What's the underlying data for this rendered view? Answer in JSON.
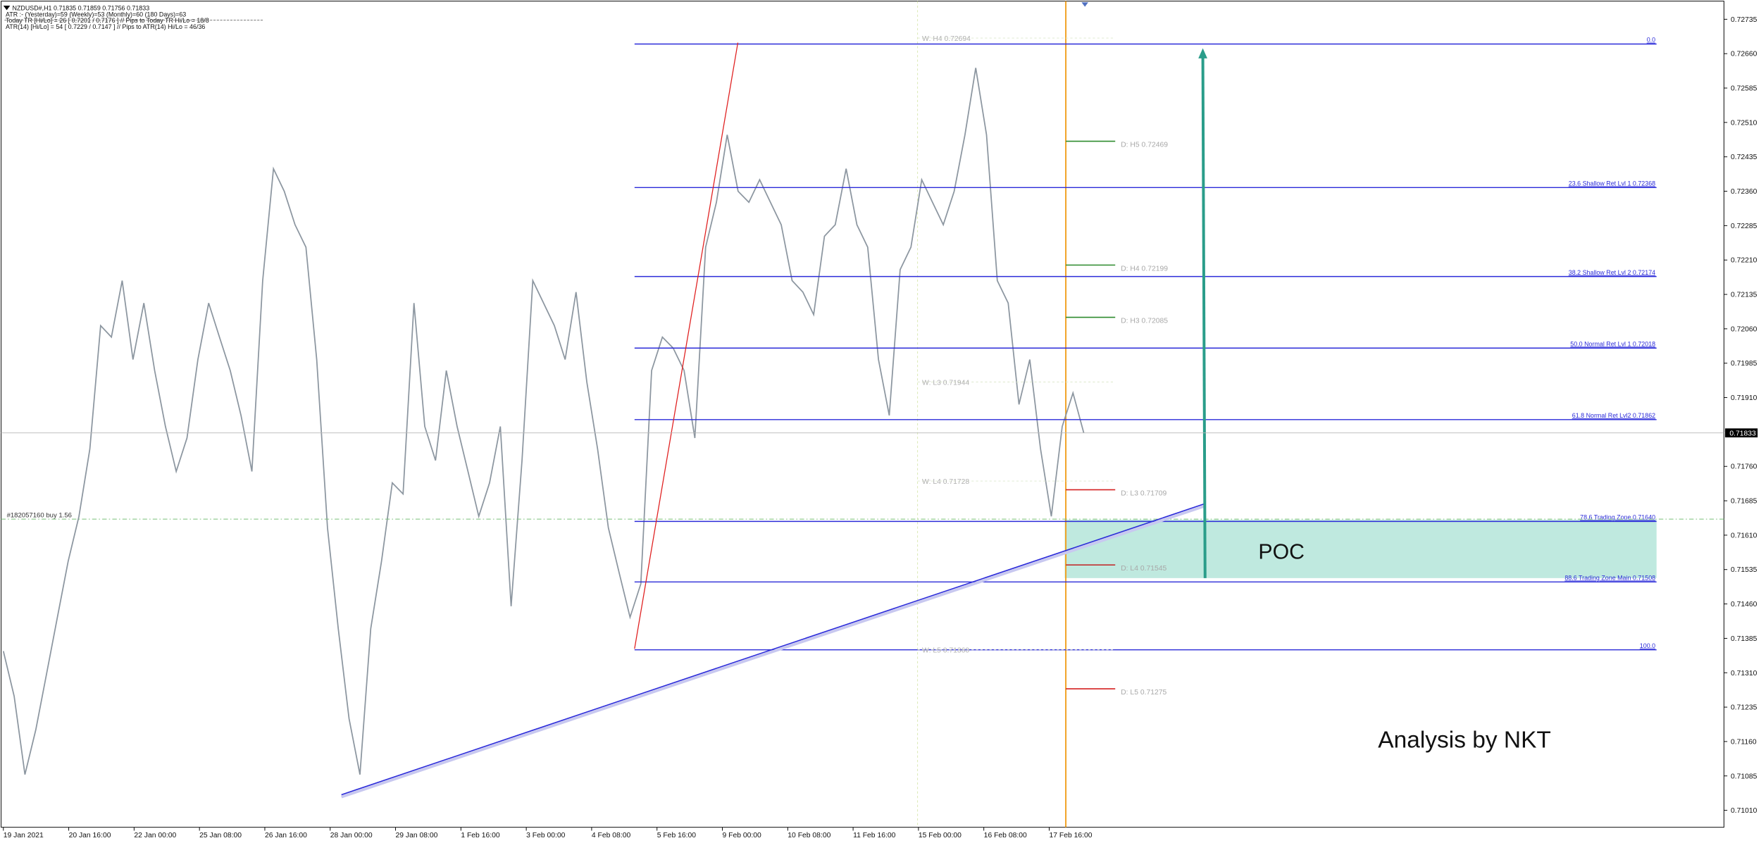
{
  "chart_data": {
    "type": "line",
    "header": [
      "NZDUSD#,H1  0.71835 0.71859 0.71756 0.71833",
      "ATR :- (Yesterday)=59     (Weekly)=53     (Monthly)=60     (180 Days)=63",
      "Today  TR [Hi/Lo] = 26 [ 0.7201 / 0.7176 ]  // Pips to Today  TR Hi/Lo  = 18/8",
      "ATR(14)     [Hi/Lo] = 54 [ 0.7229 / 0.7147 ]  // Pips to ATR(14) Hi/Lo     = 46/36"
    ],
    "time_labels": [
      "19 Jan 2021",
      "20 Jan 16:00",
      "22 Jan 00:00",
      "25 Jan 08:00",
      "26 Jan 16:00",
      "28 Jan 00:00",
      "29 Jan 08:00",
      "1 Feb 16:00",
      "3 Feb 00:00",
      "4 Feb 08:00",
      "5 Feb 16:00",
      "9 Feb 00:00",
      "10 Feb 08:00",
      "11 Feb 16:00",
      "15 Feb 00:00",
      "16 Feb 08:00",
      "17 Feb 16:00"
    ],
    "color": "#8c96a0",
    "values": [
      0.71357,
      0.71259,
      0.71088,
      0.71186,
      0.71308,
      0.71431,
      0.71553,
      0.71651,
      0.71798,
      0.72067,
      0.72042,
      0.72165,
      0.71993,
      0.72116,
      0.71969,
      0.71847,
      0.71749,
      0.71822,
      0.71993,
      0.72116,
      0.72042,
      0.71969,
      0.71871,
      0.71749,
      0.72165,
      0.72409,
      0.7236,
      0.72287,
      0.72238,
      0.71993,
      0.71626,
      0.71406,
      0.7121,
      0.71088,
      0.71406,
      0.71553,
      0.71724,
      0.717,
      0.72116,
      0.71847,
      0.71773,
      0.71969,
      0.71847,
      0.71749,
      0.71651,
      0.71724,
      0.71847,
      0.71455,
      0.71773,
      0.72165,
      0.72116,
      0.72067,
      0.71993,
      0.7214,
      0.71944,
      0.71798,
      0.71626,
      0.71528,
      0.71431,
      0.71504,
      0.71969,
      0.72042,
      0.72018,
      0.71969,
      0.71822,
      0.72238,
      0.72336,
      0.72483,
      0.7236,
      0.72336,
      0.72385,
      0.72336,
      0.72287,
      0.72165,
      0.7214,
      0.72091,
      0.72262,
      0.72287,
      0.72409,
      0.72287,
      0.72238,
      0.71993,
      0.71871,
      0.72189,
      0.72238,
      0.72385,
      0.72336,
      0.72287,
      0.7236,
      0.72483,
      0.72629,
      0.72483,
      0.72165,
      0.72116,
      0.71895,
      0.71993,
      0.71798,
      0.71651,
      0.71847,
      0.7192,
      0.71833
    ],
    "ylim": [
      0.70973,
      0.72777
    ],
    "yticks": [
      0.72735,
      {
        "value": 0.7266,
        "label": "0.72660"
      },
      0.72585,
      {
        "value": 0.7251,
        "label": "0.72510"
      },
      0.72435,
      {
        "value": 0.7236,
        "label": "0.72360"
      },
      0.72285,
      {
        "value": 0.7221,
        "label": "0.72210"
      },
      0.72135,
      {
        "value": 0.7206,
        "label": "0.72060"
      },
      0.71985,
      {
        "value": 0.7191,
        "label": "0.71910"
      },
      {
        "value": 0.7176,
        "label": "0.71760"
      },
      0.71685,
      {
        "value": 0.7161,
        "label": "0.71610"
      },
      0.71535,
      {
        "value": 0.7146,
        "label": "0.71460"
      },
      0.71385,
      {
        "value": 0.7131,
        "label": "0.71310"
      },
      0.71235,
      {
        "value": 0.7116,
        "label": "0.71160"
      },
      0.71085,
      {
        "value": 0.7101,
        "label": "0.71010"
      }
    ],
    "last_price": 0.71833,
    "levels_color": "#2b2bd9",
    "levels": [
      {
        "label": "0.0",
        "price": 0.72681
      },
      {
        "label": "23.6 Shallow Ret Lvl 1 0.72368",
        "price": 0.72368
      },
      {
        "label": "38.2 Shallow Ret Lvl 2 0.72174",
        "price": 0.72174
      },
      {
        "label": "50.0 Normal Ret Lvl 1 0.72018",
        "price": 0.72018
      },
      {
        "label": "61.8 Normal Ret Lvl2 0.71862",
        "price": 0.71862
      },
      {
        "label": "78.6 Trading Zone 0.71640",
        "price": 0.7164
      },
      {
        "label": "88.6 Trading Zone Main 0.71508",
        "price": 0.71508
      },
      {
        "label": "100.0",
        "price": 0.7136
      }
    ],
    "daily_pivots": [
      {
        "label": "D: H5 0.72469",
        "price": 0.72469,
        "color": "#2e8b2e"
      },
      {
        "label": "D: H4 0.72199",
        "price": 0.72199,
        "color": "#2e8b2e"
      },
      {
        "label": "D: H3 0.72085",
        "price": 0.72085,
        "color": "#2e8b2e"
      },
      {
        "label": "D: L3 0.71709",
        "price": 0.71709,
        "color": "#d42020"
      },
      {
        "label": "D: L4 0.71545",
        "price": 0.71545,
        "color": "#c03030"
      },
      {
        "label": "D: L5 0.71275",
        "price": 0.71275,
        "color": "#d42020"
      }
    ],
    "weekly_pivots": [
      {
        "label": "W: H4 0.72694",
        "price": 0.72694
      },
      {
        "label": "W: L3 0.71944",
        "price": 0.71944
      },
      {
        "label": "W: L4 0.71728",
        "price": 0.71728
      },
      {
        "label": "W: L5 0.71360",
        "price": 0.7136
      }
    ],
    "order": {
      "label": "#182057160 buy 1.56",
      "price": 0.71645
    },
    "annotations": [
      "POC",
      "Analysis by NKT"
    ]
  }
}
